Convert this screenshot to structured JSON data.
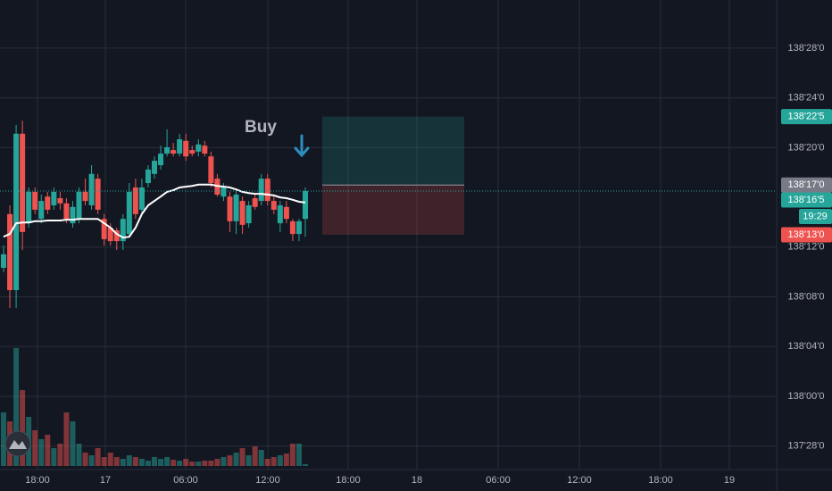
{
  "chart_data": {
    "type": "candlestick",
    "ylim": [
      137.816,
      138.996
    ],
    "yticks": [
      {
        "value": 138.875,
        "label": "138'28'0"
      },
      {
        "value": 138.75,
        "label": "138'24'0"
      },
      {
        "value": 138.625,
        "label": "138'20'0"
      },
      {
        "value": 138.375,
        "label": "138'12'0"
      },
      {
        "value": 138.25,
        "label": "138'08'0"
      },
      {
        "value": 138.125,
        "label": "138'04'0"
      },
      {
        "value": 138.0,
        "label": "138'00'0"
      },
      {
        "value": 137.875,
        "label": "137'28'0"
      }
    ],
    "time_labels": [
      "18:00",
      "17",
      "06:00",
      "12:00",
      "18:00",
      "18",
      "06:00",
      "12:00",
      "18:00",
      "19"
    ],
    "up_color": "#26a69a",
    "down_color": "#ef5350",
    "open": [
      138.323,
      138.458,
      138.267,
      138.66,
      138.435,
      138.514,
      138.446,
      138.502,
      138.48,
      138.498,
      138.485,
      138.435,
      138.446,
      138.514,
      138.48,
      138.547,
      138.446,
      138.424,
      138.417,
      138.39,
      138.408,
      138.525,
      138.469,
      138.536,
      138.559,
      138.581,
      138.61,
      138.619,
      138.61,
      138.642,
      138.619,
      138.615,
      138.63,
      138.603,
      138.547,
      138.502,
      138.502,
      138.44,
      138.491,
      138.435,
      138.498,
      138.491,
      138.547,
      138.491,
      138.435,
      138.476,
      138.44,
      138.408,
      138.446
    ],
    "high": [
      138.379,
      138.48,
      138.682,
      138.693,
      138.525,
      138.525,
      138.507,
      138.514,
      138.525,
      138.514,
      138.498,
      138.491,
      138.525,
      138.547,
      138.581,
      138.559,
      138.458,
      138.435,
      138.424,
      138.458,
      138.536,
      138.547,
      138.547,
      138.581,
      138.603,
      138.63,
      138.671,
      138.637,
      138.66,
      138.66,
      138.63,
      138.646,
      138.642,
      138.615,
      138.559,
      138.536,
      138.514,
      138.52,
      138.502,
      138.491,
      138.507,
      138.559,
      138.559,
      138.502,
      138.491,
      138.491,
      138.446,
      138.446,
      138.525
    ],
    "low": [
      138.312,
      138.222,
      138.222,
      138.368,
      138.424,
      138.458,
      138.435,
      138.458,
      138.469,
      138.469,
      138.435,
      138.424,
      138.435,
      138.48,
      138.469,
      138.458,
      138.379,
      138.379,
      138.368,
      138.368,
      138.401,
      138.446,
      138.458,
      138.525,
      138.547,
      138.57,
      138.603,
      138.603,
      138.603,
      138.592,
      138.603,
      138.603,
      138.603,
      138.525,
      138.502,
      138.491,
      138.413,
      138.408,
      138.408,
      138.424,
      138.469,
      138.48,
      138.48,
      138.458,
      138.413,
      138.435,
      138.39,
      138.39,
      138.401
    ],
    "close": [
      138.357,
      138.267,
      138.66,
      138.413,
      138.514,
      138.469,
      138.491,
      138.469,
      138.514,
      138.485,
      138.446,
      138.476,
      138.514,
      138.491,
      138.559,
      138.469,
      138.395,
      138.39,
      138.39,
      138.446,
      138.514,
      138.458,
      138.525,
      138.57,
      138.592,
      138.61,
      138.626,
      138.61,
      138.646,
      138.603,
      138.61,
      138.633,
      138.61,
      138.536,
      138.507,
      138.525,
      138.44,
      138.507,
      138.431,
      138.48,
      138.476,
      138.547,
      138.491,
      138.469,
      138.48,
      138.446,
      138.408,
      138.44,
      138.516
    ],
    "volume": [
      60,
      50,
      132,
      85,
      55,
      40,
      30,
      35,
      20,
      25,
      60,
      50,
      25,
      15,
      12,
      20,
      10,
      15,
      10,
      8,
      12,
      10,
      8,
      6,
      10,
      8,
      10,
      7,
      6,
      8,
      5,
      5,
      6,
      6,
      8,
      10,
      12,
      15,
      20,
      12,
      22,
      18,
      8,
      10,
      12,
      14,
      25,
      25,
      2
    ],
    "ma": {
      "color": "#ffffff",
      "values": [
        138.401,
        138.408,
        138.435,
        138.437,
        138.437,
        138.44,
        138.44,
        138.442,
        138.442,
        138.442,
        138.444,
        138.444,
        138.446,
        138.446,
        138.446,
        138.446,
        138.435,
        138.424,
        138.408,
        138.399,
        138.401,
        138.424,
        138.458,
        138.48,
        138.491,
        138.502,
        138.514,
        138.518,
        138.525,
        138.527,
        138.529,
        138.532,
        138.532,
        138.532,
        138.529,
        138.527,
        138.525,
        138.52,
        138.514,
        138.511,
        138.509,
        138.509,
        138.507,
        138.505,
        138.5,
        138.498,
        138.494,
        138.489,
        138.487
      ]
    },
    "position": {
      "target": 138.703,
      "target_label": "138'22'5",
      "entry": 138.531,
      "entry_label": "138'17'0",
      "stop": 138.406,
      "stop_label": "138'13'0"
    },
    "last_price": {
      "value": 138.516,
      "label": "138'16'5",
      "countdown": "19:29"
    },
    "annotation": {
      "text": "Buy",
      "color": "#2b8fbf"
    }
  }
}
